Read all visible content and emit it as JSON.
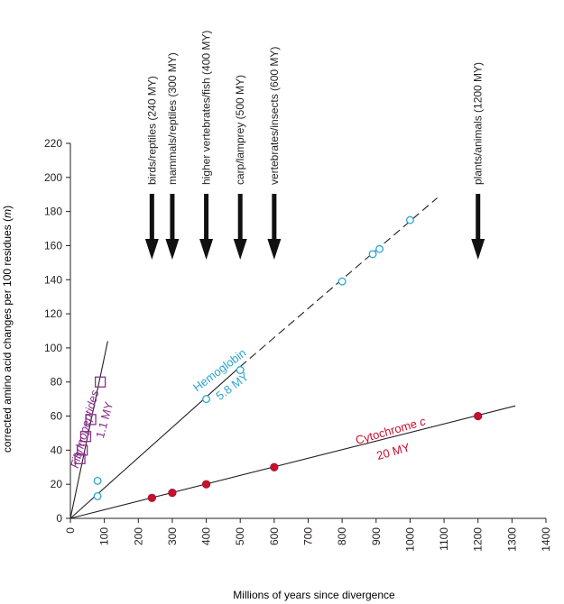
{
  "chart_data": {
    "type": "scatter",
    "title": "",
    "xlabel": "Millions of years since divergence",
    "ylabel": "corrected amino acid changes per 100 residues (m)",
    "ylabel_main": "corrected amino acid changes per 100 residues (",
    "ylabel_var": "m",
    "ylabel_end": ")",
    "xlim": [
      0,
      1400
    ],
    "ylim": [
      0,
      220
    ],
    "xticks": [
      0,
      100,
      200,
      300,
      400,
      500,
      600,
      700,
      800,
      900,
      1000,
      1100,
      1200,
      1300,
      1400
    ],
    "yticks": [
      0,
      20,
      40,
      60,
      80,
      100,
      120,
      140,
      160,
      180,
      200,
      220
    ],
    "colors": {
      "fibrinopeptides": "#8a2f8c",
      "hemoglobin": "#2aa5cf",
      "cytochrome": "#c8102e",
      "axis": "#231f20"
    },
    "series": [
      {
        "name": "Fibrinopeptides",
        "rate_label": "1.1 MY",
        "marker": "square",
        "points": [
          [
            28,
            35
          ],
          [
            35,
            40
          ],
          [
            45,
            48
          ],
          [
            60,
            58
          ],
          [
            88,
            80
          ]
        ],
        "fit_line": [
          [
            0,
            0
          ],
          [
            110,
            104
          ]
        ]
      },
      {
        "name": "Hemoglobin",
        "rate_label": "5.8 MY",
        "marker": "open-circle",
        "points": [
          [
            80,
            13
          ],
          [
            80,
            22
          ],
          [
            400,
            70
          ],
          [
            500,
            87
          ],
          [
            800,
            139
          ],
          [
            890,
            155
          ],
          [
            910,
            158
          ],
          [
            1000,
            175
          ]
        ],
        "fit_line": [
          [
            0,
            0
          ],
          [
            500,
            89
          ]
        ],
        "dashed_line": [
          [
            500,
            89
          ],
          [
            1080,
            188
          ]
        ]
      },
      {
        "name": "Cytochrome c",
        "name_main": "Cytochrome ",
        "name_var": "c",
        "rate_label": "20 MY",
        "marker": "filled-circle",
        "points": [
          [
            240,
            12
          ],
          [
            300,
            15
          ],
          [
            400,
            20
          ],
          [
            600,
            30
          ],
          [
            1200,
            60
          ]
        ],
        "fit_line": [
          [
            0,
            0
          ],
          [
            1310,
            66
          ]
        ]
      }
    ],
    "divergence_events": [
      {
        "label": "birds/reptiles (240 MY)",
        "x": 240
      },
      {
        "label": "mammals/reptiles (300 MY)",
        "x": 300
      },
      {
        "label": "higher vertebrates/fish (400 MY)",
        "x": 400
      },
      {
        "label": "carp/lamprey (500 MY)",
        "x": 500
      },
      {
        "label": "vertebrates/insects (600 MY)",
        "x": 600
      },
      {
        "label": "plants/animals (1200 MY)",
        "x": 1200
      }
    ]
  }
}
